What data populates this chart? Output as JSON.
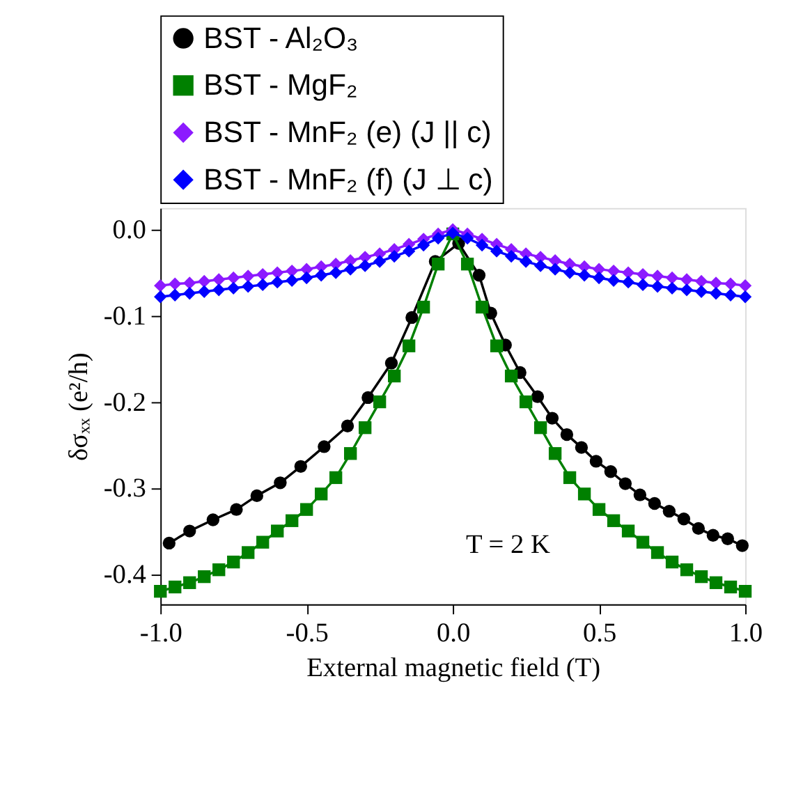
{
  "chart_data": {
    "type": "line",
    "xlabel": "External magnetic field (T)",
    "ylabel": "δσₓₓ (e²/h)",
    "xlim": [
      -1.0,
      1.0
    ],
    "ylim": [
      -0.435,
      0.025
    ],
    "xticks": [
      {
        "value": -1.0,
        "label": "-1.0"
      },
      -0.5,
      {
        "value": 0,
        "label": "0.0"
      },
      0.5,
      {
        "value": 1.0,
        "label": "1.0"
      }
    ],
    "yticks": [
      {
        "value": 0,
        "label": "0.0"
      },
      -0.1,
      -0.2,
      -0.3,
      -0.4
    ],
    "grid": false,
    "legend": "top",
    "line_style": "solid",
    "annotations": [
      "T = 2 K"
    ],
    "series": [
      {
        "name": "BST - Al₂O₃",
        "color": "#000000",
        "marker": "circle",
        "x": [
          -0.97,
          -0.9,
          -0.82,
          -0.74,
          -0.67,
          -0.59,
          -0.52,
          -0.44,
          -0.36,
          -0.29,
          -0.21,
          -0.14,
          -0.06,
          0.02,
          0.09,
          0.13,
          0.18,
          0.23,
          0.29,
          0.34,
          0.39,
          0.44,
          0.49,
          0.54,
          0.59,
          0.64,
          0.69,
          0.74,
          0.79,
          0.84,
          0.89,
          0.94,
          0.99
        ],
        "values": [
          -0.364,
          -0.35,
          -0.337,
          -0.325,
          -0.309,
          -0.294,
          -0.275,
          -0.252,
          -0.228,
          -0.195,
          -0.155,
          -0.102,
          -0.037,
          -0.016,
          -0.053,
          -0.097,
          -0.134,
          -0.166,
          -0.194,
          -0.219,
          -0.238,
          -0.253,
          -0.269,
          -0.281,
          -0.295,
          -0.308,
          -0.318,
          -0.327,
          -0.336,
          -0.347,
          -0.355,
          -0.359,
          -0.367
        ]
      },
      {
        "name": "BST - MgF₂",
        "color": "#008000",
        "marker": "square",
        "x": [
          -1.0,
          -0.95,
          -0.9,
          -0.85,
          -0.8,
          -0.75,
          -0.7,
          -0.65,
          -0.6,
          -0.55,
          -0.5,
          -0.45,
          -0.4,
          -0.35,
          -0.3,
          -0.25,
          -0.2,
          -0.15,
          -0.1,
          -0.05,
          0.0,
          0.05,
          0.1,
          0.15,
          0.2,
          0.25,
          0.3,
          0.35,
          0.4,
          0.45,
          0.5,
          0.55,
          0.6,
          0.65,
          0.7,
          0.75,
          0.8,
          0.85,
          0.9,
          0.95,
          1.0
        ],
        "values": [
          -0.42,
          -0.415,
          -0.41,
          -0.403,
          -0.395,
          -0.386,
          -0.375,
          -0.363,
          -0.35,
          -0.338,
          -0.325,
          -0.307,
          -0.288,
          -0.26,
          -0.23,
          -0.2,
          -0.17,
          -0.135,
          -0.09,
          -0.04,
          -0.005,
          -0.04,
          -0.09,
          -0.135,
          -0.17,
          -0.2,
          -0.23,
          -0.26,
          -0.288,
          -0.307,
          -0.325,
          -0.338,
          -0.35,
          -0.363,
          -0.375,
          -0.386,
          -0.395,
          -0.403,
          -0.41,
          -0.415,
          -0.42
        ]
      },
      {
        "name": "BST - MnF₂ (e) (J || c)",
        "color": "#8c1aff",
        "marker": "diamond",
        "x": [
          -1.0,
          -0.95,
          -0.9,
          -0.85,
          -0.8,
          -0.75,
          -0.7,
          -0.65,
          -0.6,
          -0.55,
          -0.5,
          -0.45,
          -0.4,
          -0.35,
          -0.3,
          -0.25,
          -0.2,
          -0.15,
          -0.1,
          -0.05,
          0.0,
          0.05,
          0.1,
          0.15,
          0.2,
          0.25,
          0.3,
          0.35,
          0.4,
          0.45,
          0.5,
          0.55,
          0.6,
          0.65,
          0.7,
          0.75,
          0.8,
          0.85,
          0.9,
          0.95,
          1.0
        ],
        "values": [
          -0.065,
          -0.063,
          -0.062,
          -0.06,
          -0.058,
          -0.056,
          -0.054,
          -0.052,
          -0.05,
          -0.048,
          -0.046,
          -0.043,
          -0.04,
          -0.036,
          -0.032,
          -0.028,
          -0.023,
          -0.017,
          -0.011,
          -0.005,
          0.0,
          -0.005,
          -0.011,
          -0.017,
          -0.023,
          -0.028,
          -0.032,
          -0.036,
          -0.04,
          -0.043,
          -0.046,
          -0.048,
          -0.05,
          -0.052,
          -0.054,
          -0.056,
          -0.058,
          -0.06,
          -0.062,
          -0.063,
          -0.065
        ]
      },
      {
        "name": "BST - MnF₂ (f) (J ⊥ c)",
        "color": "#0000ff",
        "marker": "diamond",
        "x": [
          -1.0,
          -0.95,
          -0.9,
          -0.85,
          -0.8,
          -0.75,
          -0.7,
          -0.65,
          -0.6,
          -0.55,
          -0.5,
          -0.45,
          -0.4,
          -0.35,
          -0.3,
          -0.25,
          -0.2,
          -0.15,
          -0.1,
          -0.05,
          0.0,
          0.05,
          0.1,
          0.15,
          0.2,
          0.25,
          0.3,
          0.35,
          0.4,
          0.45,
          0.5,
          0.55,
          0.6,
          0.65,
          0.7,
          0.75,
          0.8,
          0.85,
          0.9,
          0.95,
          1.0
        ],
        "values": [
          -0.078,
          -0.076,
          -0.074,
          -0.072,
          -0.07,
          -0.068,
          -0.066,
          -0.064,
          -0.061,
          -0.059,
          -0.056,
          -0.053,
          -0.05,
          -0.046,
          -0.042,
          -0.037,
          -0.031,
          -0.025,
          -0.018,
          -0.01,
          -0.004,
          -0.01,
          -0.018,
          -0.025,
          -0.031,
          -0.037,
          -0.042,
          -0.046,
          -0.05,
          -0.053,
          -0.056,
          -0.059,
          -0.061,
          -0.064,
          -0.066,
          -0.068,
          -0.07,
          -0.072,
          -0.074,
          -0.076,
          -0.078
        ]
      }
    ]
  }
}
